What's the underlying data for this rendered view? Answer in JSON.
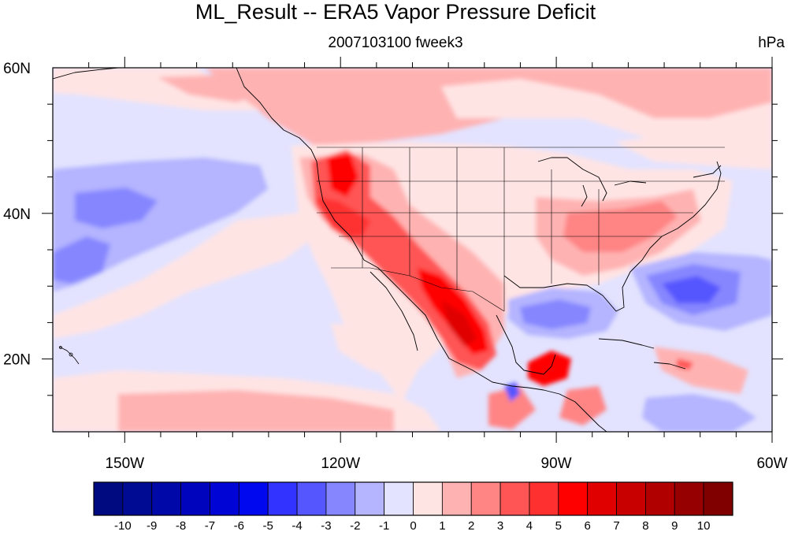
{
  "title": "ML_Result -- ERA5 Vapor Pressure Deficit",
  "subtitle_center": "2007103100 fweek3",
  "subtitle_right": "hPa",
  "lat_labels": [
    "60N",
    "40N",
    "20N"
  ],
  "lon_labels": [
    "150W",
    "120W",
    "90W",
    "60W"
  ],
  "colorbar": {
    "labels": [
      "-10",
      "-9",
      "-8",
      "-7",
      "-6",
      "-5",
      "-4",
      "-3",
      "-2",
      "-1",
      "0",
      "1",
      "2",
      "3",
      "4",
      "5",
      "6",
      "7",
      "8",
      "9",
      "10"
    ],
    "colors": [
      "#000a80",
      "#000b94",
      "#0008a8",
      "#0005bd",
      "#0005d6",
      "#0008f0",
      "#3333ff",
      "#5656ff",
      "#8686ff",
      "#b4b4ff",
      "#e3e3ff",
      "#ffe4e4",
      "#ffb2b2",
      "#ff8484",
      "#ff5555",
      "#ff3030",
      "#ff0000",
      "#e00000",
      "#c80000",
      "#b00000",
      "#960000",
      "#800000"
    ]
  },
  "map": {
    "lon_range": [
      -160,
      -60
    ],
    "lat_range": [
      10,
      60
    ],
    "projection": "cylindrical equidistant",
    "ocean_background": "#e3e3ff",
    "land_background": "#ffe4e4"
  }
}
